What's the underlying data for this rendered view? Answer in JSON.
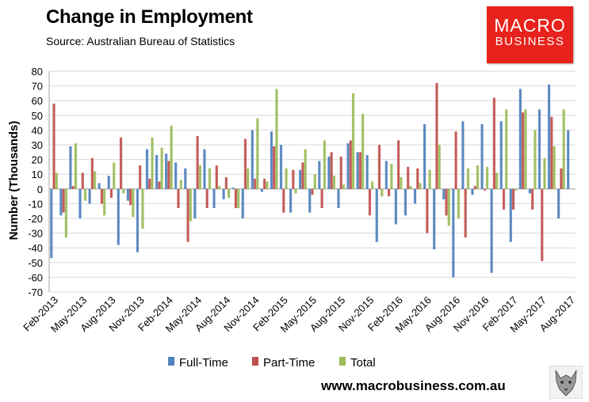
{
  "header": {
    "title": "Change in Employment",
    "subtitle": "Source: Australian Bureau of Statistics"
  },
  "logo": {
    "line1": "MACRO",
    "line2": "BUSINESS"
  },
  "footer": {
    "website": "www.macrobusiness.com.au"
  },
  "colors": {
    "full_time": "#4f81bd",
    "part_time": "#c0504d",
    "total": "#9bbb59"
  },
  "chart_data": {
    "type": "bar",
    "title": "Change in Employment",
    "xlabel": "",
    "ylabel": "Number (Thousands)",
    "ylim": [
      -70,
      80
    ],
    "yticks": [
      80,
      70,
      60,
      50,
      40,
      30,
      20,
      10,
      0,
      -10,
      -20,
      -30,
      -40,
      -50,
      -60,
      -70
    ],
    "xtick_labels": [
      "Feb-2013",
      "May-2013",
      "Aug-2013",
      "Nov-2013",
      "Feb-2014",
      "May-2014",
      "Aug-2014",
      "Nov-2014",
      "Feb-2015",
      "May-2015",
      "Aug-2015",
      "Nov-2015",
      "Feb-2016",
      "May-2016",
      "Aug-2016",
      "Nov-2016",
      "Feb-2017",
      "May-2017",
      "Aug-2017"
    ],
    "legend": [
      "Full-Time",
      "Part-Time",
      "Total"
    ],
    "legend_position": "bottom",
    "categories": [
      "Feb-2013",
      "Mar-2013",
      "Apr-2013",
      "May-2013",
      "Jun-2013",
      "Jul-2013",
      "Aug-2013",
      "Sep-2013",
      "Oct-2013",
      "Nov-2013",
      "Dec-2013",
      "Jan-2014",
      "Feb-2014",
      "Mar-2014",
      "Apr-2014",
      "May-2014",
      "Jun-2014",
      "Jul-2014",
      "Aug-2014",
      "Sep-2014",
      "Oct-2014",
      "Nov-2014",
      "Dec-2014",
      "Jan-2015",
      "Feb-2015",
      "Mar-2015",
      "Apr-2015",
      "May-2015",
      "Jun-2015",
      "Jul-2015",
      "Aug-2015",
      "Sep-2015",
      "Oct-2015",
      "Nov-2015",
      "Dec-2015",
      "Jan-2016",
      "Feb-2016",
      "Mar-2016",
      "Apr-2016",
      "May-2016",
      "Jun-2016",
      "Jul-2016",
      "Aug-2016",
      "Sep-2016",
      "Oct-2016",
      "Nov-2016",
      "Dec-2016",
      "Jan-2017",
      "Feb-2017",
      "Mar-2017",
      "Apr-2017",
      "May-2017",
      "Jun-2017",
      "Jul-2017",
      "Aug-2017"
    ],
    "series": [
      {
        "name": "Full-Time",
        "values": [
          -47,
          -18,
          29,
          -20,
          -10,
          4,
          9,
          -38,
          -8,
          -43,
          27,
          23,
          24,
          18,
          14,
          -20,
          27,
          -13,
          -7,
          1,
          -20,
          40,
          -2,
          39,
          30,
          -16,
          13,
          -16,
          19,
          22,
          -13,
          31,
          25,
          23,
          -36,
          19,
          -24,
          -18,
          -10,
          44,
          -41,
          -7,
          -60,
          46,
          -4,
          44,
          -57,
          46,
          -36,
          68,
          -3,
          54,
          71,
          -20,
          40
        ]
      },
      {
        "name": "Part-Time",
        "values": [
          58,
          -16,
          2,
          11,
          21,
          -10,
          -6,
          35,
          -11,
          16,
          7,
          5,
          19,
          -13,
          -36,
          36,
          -13,
          16,
          8,
          -13,
          34,
          7,
          7,
          29,
          -16,
          13,
          18,
          -4,
          -13,
          25,
          22,
          33,
          25,
          -18,
          30,
          -5,
          33,
          15,
          14,
          -30,
          72,
          -18,
          39,
          -33,
          2,
          -1,
          62,
          -14,
          -14,
          52,
          -14,
          -49,
          49,
          14,
          0
        ]
      },
      {
        "name": "Total",
        "values": [
          11,
          -33,
          31,
          -8,
          12,
          -18,
          18,
          -3,
          -19,
          -27,
          35,
          28,
          43,
          6,
          -22,
          16,
          14,
          2,
          -6,
          -13,
          14,
          48,
          5,
          68,
          14,
          -3,
          27,
          10,
          33,
          9,
          3,
          65,
          51,
          5,
          -5,
          17,
          8,
          2,
          4,
          13,
          30,
          -25,
          -20,
          14,
          16,
          15,
          11,
          54,
          -1,
          54,
          40,
          21,
          29,
          54,
          0
        ]
      }
    ]
  }
}
